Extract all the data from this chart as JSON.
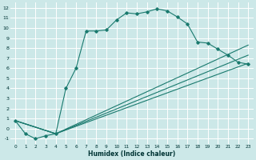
{
  "xlabel": "Humidex (Indice chaleur)",
  "bg_color": "#cce8e8",
  "grid_color": "#ffffff",
  "line_color": "#1a7a6e",
  "xlim": [
    -0.5,
    23.5
  ],
  "ylim": [
    -1.5,
    12.5
  ],
  "xticks": [
    0,
    1,
    2,
    3,
    4,
    5,
    6,
    7,
    8,
    9,
    10,
    11,
    12,
    13,
    14,
    15,
    16,
    17,
    18,
    19,
    20,
    21,
    22,
    23
  ],
  "yticks": [
    -1,
    0,
    1,
    2,
    3,
    4,
    5,
    6,
    7,
    8,
    9,
    10,
    11,
    12
  ],
  "line1_x": [
    0,
    1,
    2,
    3,
    4,
    5,
    6,
    7,
    8,
    9,
    10,
    11,
    12,
    13,
    14,
    15,
    16,
    17,
    18,
    19,
    20,
    21,
    22,
    23
  ],
  "line1_y": [
    0.8,
    -0.5,
    -1.0,
    -0.7,
    -0.5,
    4.0,
    6.0,
    9.7,
    9.7,
    9.8,
    10.8,
    11.5,
    11.4,
    11.6,
    11.9,
    11.7,
    11.1,
    10.4,
    8.6,
    8.5,
    7.9,
    7.3,
    6.6,
    6.4
  ],
  "line2_x": [
    0,
    4,
    23
  ],
  "line2_y": [
    0.8,
    -0.5,
    8.3
  ],
  "line3_x": [
    0,
    4,
    23
  ],
  "line3_y": [
    0.8,
    -0.5,
    6.5
  ],
  "line4_x": [
    0,
    4,
    23
  ],
  "line4_y": [
    0.8,
    -0.5,
    7.3
  ]
}
